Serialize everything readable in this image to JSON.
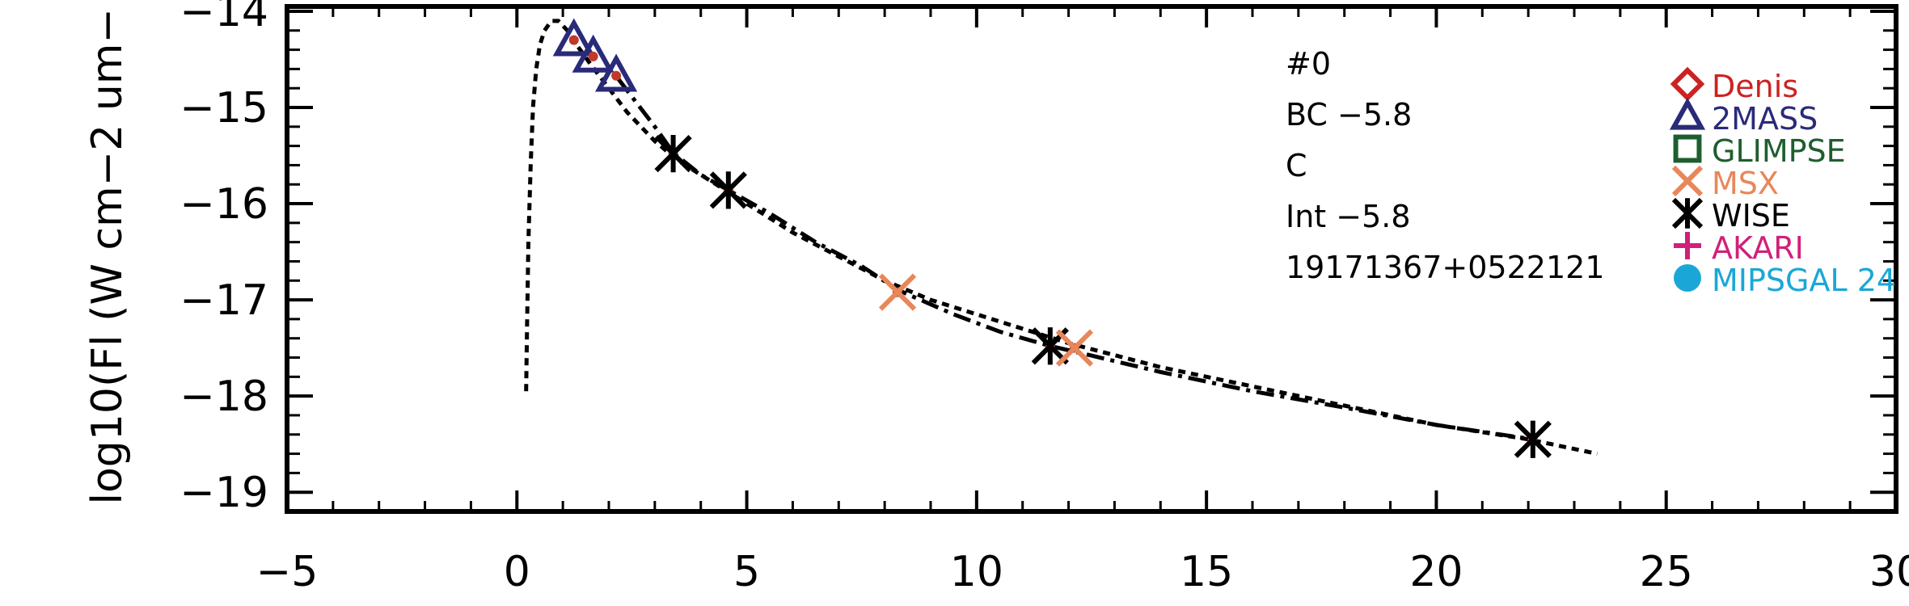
{
  "chart_data": {
    "type": "scatter",
    "ylabel": "log10(Fl (W cm−2 um−",
    "xlabel": "",
    "xlim": [
      -5,
      30
    ],
    "ylim": [
      -19.2,
      -13.95
    ],
    "x_ticks": [
      -5,
      0,
      5,
      10,
      15,
      20,
      25,
      30
    ],
    "x_tick_labels": [
      "−5",
      "0",
      "5",
      "10",
      "15",
      "20",
      "25",
      "30"
    ],
    "y_ticks": [
      -19,
      -18,
      -17,
      -16,
      -15,
      -14
    ],
    "y_tick_labels": [
      "−19",
      "−18",
      "−17",
      "−16",
      "−15",
      "−14"
    ],
    "annotations": [
      "#0",
      "BC −5.8",
      "C",
      "Int −5.8",
      "19171367+0522121"
    ],
    "legend": [
      {
        "name": "Denis",
        "marker": "diamond",
        "color": "#cc2222"
      },
      {
        "name": "2MASS",
        "marker": "triangle",
        "color": "#2a2a7a"
      },
      {
        "name": "GLIMPSE",
        "marker": "square",
        "color": "#1e5e2e"
      },
      {
        "name": "MSX",
        "marker": "x",
        "color": "#e8875a"
      },
      {
        "name": "WISE",
        "marker": "asterisk",
        "color": "#000000"
      },
      {
        "name": "AKARI",
        "marker": "plus",
        "color": "#d0207a"
      },
      {
        "name": "MIPSGAL 24",
        "marker": "circle",
        "color": "#1aa7d8"
      }
    ],
    "series": [
      {
        "name": "2MASS",
        "marker": "triangle",
        "color": "#2a2a7a",
        "x": [
          1.24,
          1.66,
          2.16
        ],
        "y": [
          -14.3,
          -14.47,
          -14.67
        ]
      },
      {
        "name": "WISE",
        "marker": "asterisk",
        "color": "#000000",
        "x": [
          3.4,
          4.6,
          11.6,
          22.1
        ],
        "y": [
          -15.48,
          -15.86,
          -17.48,
          -18.45
        ]
      },
      {
        "name": "MSX",
        "marker": "x",
        "color": "#e8875a",
        "x": [
          8.28,
          12.13
        ],
        "y": [
          -16.92,
          -17.5
        ]
      }
    ],
    "data_point_color": "#c0392b",
    "curves": [
      {
        "style": "dotted",
        "x": [
          0.2,
          0.22,
          0.25,
          0.3,
          0.35,
          0.42,
          0.5,
          0.6,
          0.75,
          0.9,
          1.1,
          1.3,
          1.6,
          2.0,
          2.4,
          3.0,
          3.5,
          4.0,
          5.0,
          6.0,
          7.0,
          8.0,
          9.0,
          10.0,
          12.0,
          14.0,
          16.0,
          18.0,
          20.0,
          22.0,
          23.5
        ],
        "y": [
          -17.95,
          -17.3,
          -16.4,
          -15.6,
          -15.0,
          -14.6,
          -14.35,
          -14.2,
          -14.1,
          -14.1,
          -14.2,
          -14.35,
          -14.55,
          -14.8,
          -15.05,
          -15.35,
          -15.55,
          -15.7,
          -16.0,
          -16.3,
          -16.55,
          -16.8,
          -17.0,
          -17.15,
          -17.45,
          -17.7,
          -17.9,
          -18.1,
          -18.3,
          -18.45,
          -18.6
        ]
      },
      {
        "style": "dashdot",
        "x": [
          2.2,
          2.6,
          3.0,
          3.4,
          4.0,
          4.6,
          5.5,
          6.5,
          7.5,
          8.3,
          9.5,
          10.5,
          11.6,
          12.5,
          14.0,
          16.0,
          18.0,
          20.0,
          22.1
        ],
        "y": [
          -14.7,
          -14.95,
          -15.2,
          -15.47,
          -15.7,
          -15.86,
          -16.1,
          -16.4,
          -16.65,
          -16.9,
          -17.15,
          -17.33,
          -17.48,
          -17.58,
          -17.75,
          -17.95,
          -18.12,
          -18.3,
          -18.45
        ]
      }
    ]
  }
}
